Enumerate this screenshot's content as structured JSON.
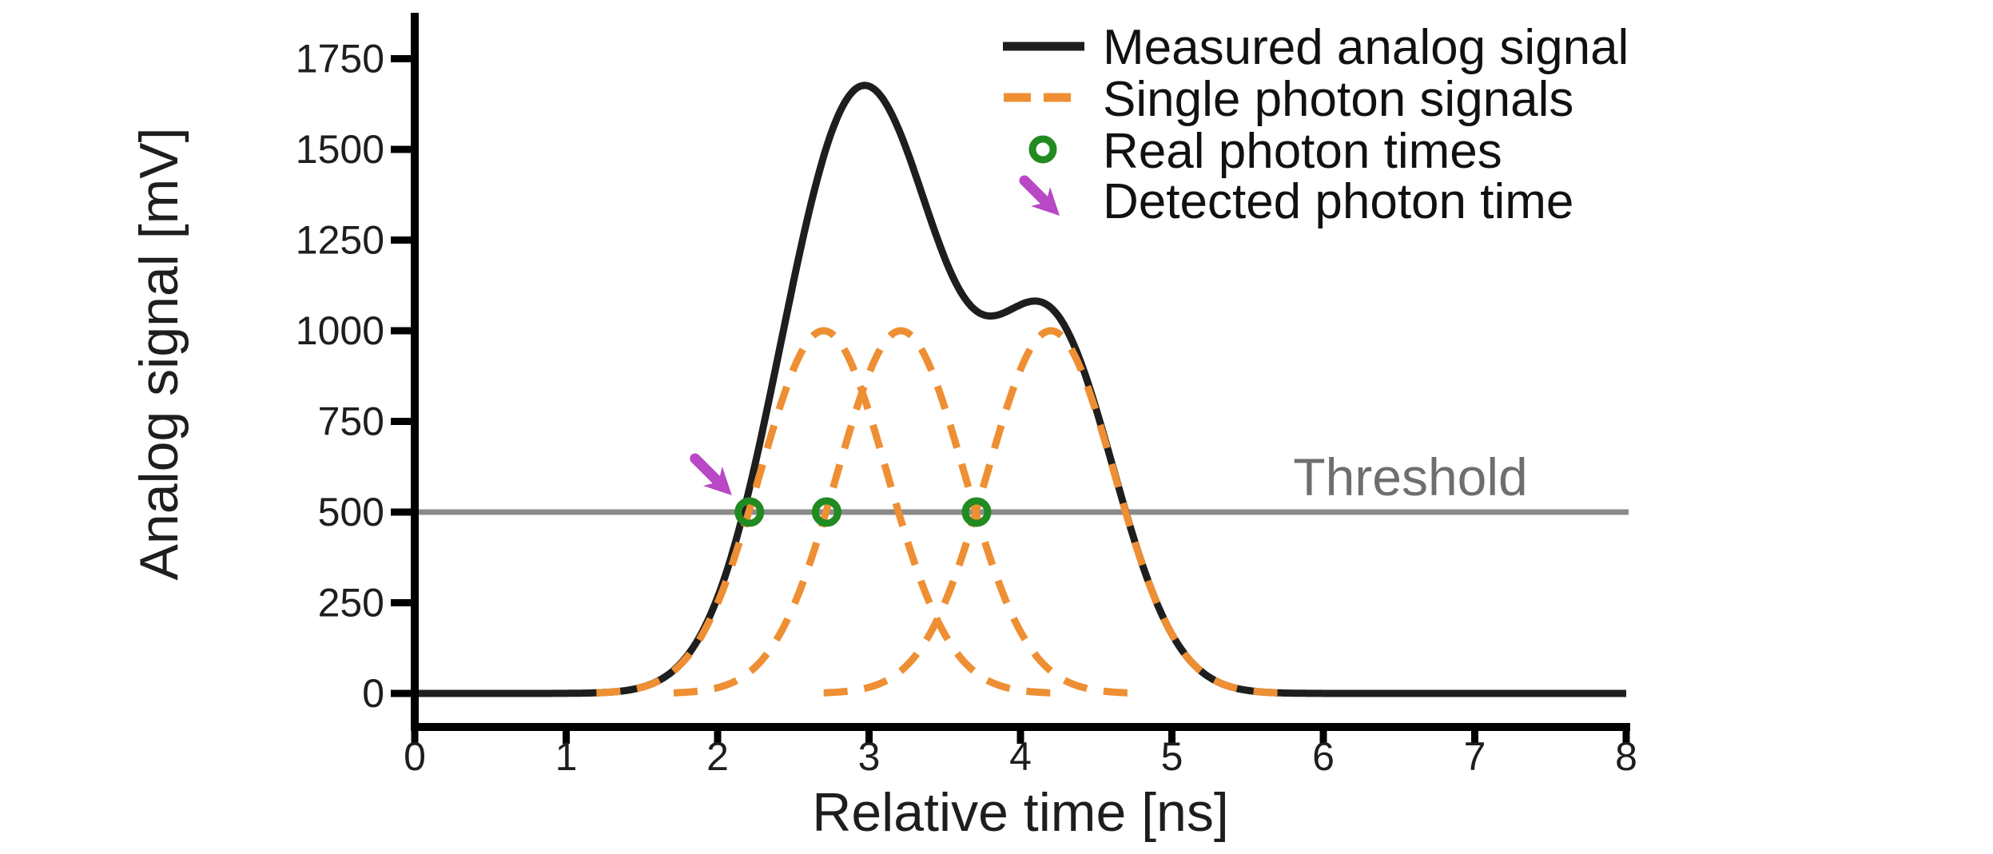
{
  "figure": {
    "background": "#ffffff"
  },
  "axes": {
    "xlabel": "Relative time [ns]",
    "ylabel": "Analog signal [mV]",
    "x_ticks": [
      0,
      1,
      2,
      3,
      4,
      5,
      6,
      7,
      8
    ],
    "y_ticks": [
      0,
      250,
      500,
      750,
      1000,
      1250,
      1500,
      1750
    ]
  },
  "threshold": {
    "label": "Threshold",
    "value_mV": 500,
    "line_color": "#8a8a8a",
    "label_color": "#6e6e6e"
  },
  "legend": {
    "items": [
      {
        "label": "Measured analog signal",
        "marker": "solid-line",
        "color": "#1e1e1e"
      },
      {
        "label": "Single photon signals",
        "marker": "dashed-line",
        "color": "#ee8f33"
      },
      {
        "label": "Real photon times",
        "marker": "open-circle",
        "color": "#218a21"
      },
      {
        "label": "Detected photon time",
        "marker": "arrow",
        "color": "#b848c6"
      }
    ]
  },
  "chart_data": {
    "type": "line",
    "title": "",
    "xlabel": "Relative time [ns]",
    "ylabel": "Analog signal [mV]",
    "xlim": [
      0,
      8
    ],
    "ylim": [
      -100,
      1870
    ],
    "x_ticks": [
      0,
      1,
      2,
      3,
      4,
      5,
      6,
      7,
      8
    ],
    "y_ticks": [
      0,
      250,
      500,
      750,
      1000,
      1250,
      1500,
      1750
    ],
    "grid": false,
    "legend_position": "upper right",
    "legend_entries": [
      "Measured analog signal",
      "Single photon signals",
      "Real photon times",
      "Detected photon time"
    ],
    "threshold_mV": 500,
    "single_photon_pulses": {
      "amplitude_mV": 1000,
      "sigma_ns": 0.42,
      "centers_ns": [
        2.7,
        3.21,
        4.2
      ],
      "draw_halfwidth_ns": 1.5,
      "style": "dashed",
      "color": "#ee8f33"
    },
    "measured_signal": {
      "description": "Sum of the three single photon pulses",
      "color": "#1e1e1e",
      "anchor_points_t_mV": [
        [
          0.0,
          0
        ],
        [
          1.0,
          2
        ],
        [
          1.2,
          10
        ],
        [
          1.5,
          55
        ],
        [
          1.7,
          110
        ],
        [
          2.0,
          265
        ],
        [
          2.21,
          500
        ],
        [
          2.56,
          1000
        ],
        [
          2.78,
          1550
        ],
        [
          2.96,
          1700
        ],
        [
          3.28,
          1470
        ],
        [
          3.5,
          1230
        ],
        [
          3.75,
          1040
        ],
        [
          4.15,
          1080
        ],
        [
          4.42,
          960
        ],
        [
          4.7,
          500
        ],
        [
          4.95,
          280
        ],
        [
          5.2,
          120
        ],
        [
          5.45,
          40
        ],
        [
          5.7,
          10
        ],
        [
          6.0,
          0
        ],
        [
          8.0,
          0
        ]
      ]
    },
    "real_photon_times_ns": [
      2.21,
      2.72,
      3.71
    ],
    "real_photon_marker_value_mV": 500,
    "detected_photon_time_ns": 2.21,
    "colors": {
      "measured": "#1e1e1e",
      "pulses": "#ee8f33",
      "real_photon": "#218a21",
      "detected_arrow": "#b848c6",
      "threshold_line": "#8a8a8a",
      "threshold_text": "#6e6e6e"
    }
  }
}
